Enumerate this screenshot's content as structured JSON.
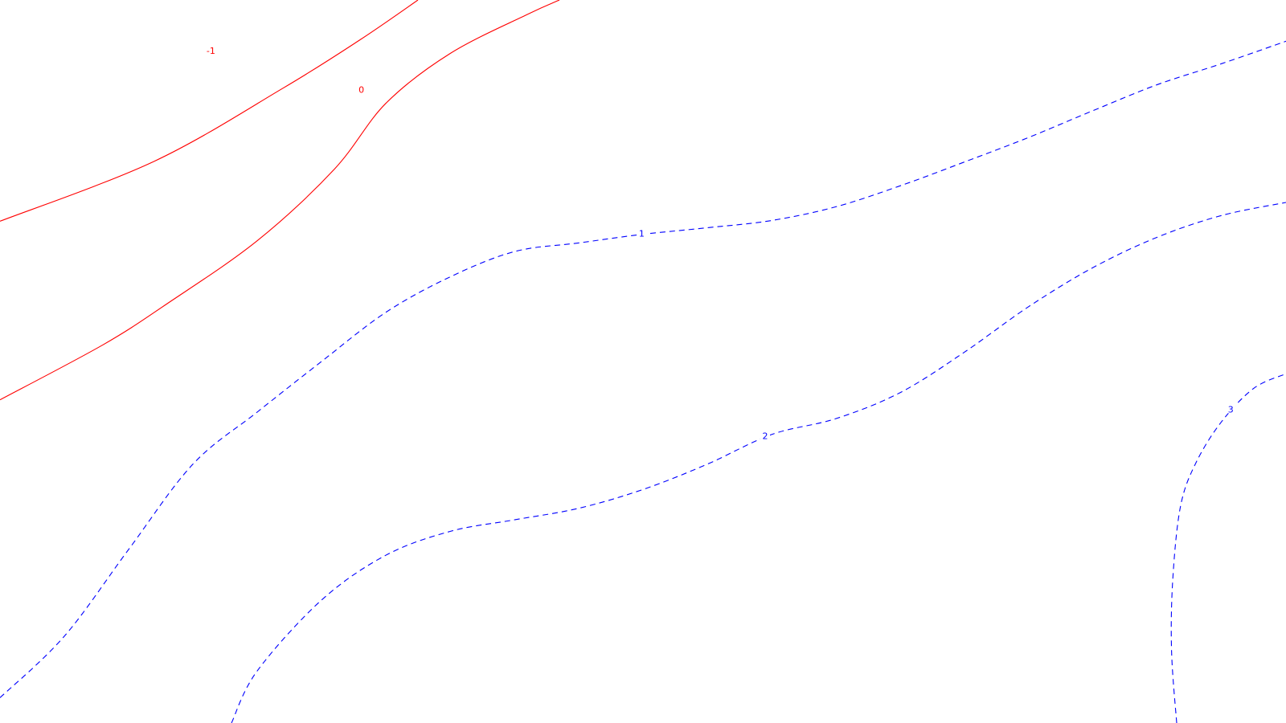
{
  "chart_data": {
    "type": "contour",
    "title": "",
    "xlabel": "",
    "ylabel": "",
    "grid": false,
    "legend": "none",
    "negative_style": "solid",
    "positive_style": "dashed",
    "colors": {
      "negative": "#ff0000",
      "zero": "#ff0000",
      "positive": "#0000ff",
      "background": "#ffffff"
    },
    "levels": [
      {
        "value": -1,
        "label": "-1",
        "color": "#ff0000",
        "dashed": false,
        "points": [
          [
            0.0,
            0.306
          ],
          [
            0.12,
            0.223
          ],
          [
            0.22,
            0.122
          ],
          [
            0.28,
            0.055
          ],
          [
            0.325,
            0.0
          ]
        ],
        "label_at": [
          0.164,
          0.07
        ]
      },
      {
        "value": 0,
        "label": "0",
        "color": "#ff0000",
        "dashed": false,
        "points": [
          [
            0.0,
            0.553
          ],
          [
            0.08,
            0.477
          ],
          [
            0.13,
            0.42
          ],
          [
            0.2,
            0.333
          ],
          [
            0.26,
            0.234
          ],
          [
            0.3,
            0.143
          ],
          [
            0.35,
            0.074
          ],
          [
            0.41,
            0.02
          ],
          [
            0.435,
            0.0
          ]
        ],
        "label_at": [
          0.281,
          0.124
        ]
      },
      {
        "value": 1,
        "label": "1",
        "color": "#0000ff",
        "dashed": true,
        "points": [
          [
            0.0,
            0.965
          ],
          [
            0.05,
            0.88
          ],
          [
            0.1,
            0.76
          ],
          [
            0.15,
            0.642
          ],
          [
            0.2,
            0.57
          ],
          [
            0.25,
            0.5
          ],
          [
            0.3,
            0.432
          ],
          [
            0.35,
            0.383
          ],
          [
            0.4,
            0.348
          ],
          [
            0.45,
            0.336
          ],
          [
            0.5,
            0.324
          ],
          [
            0.55,
            0.315
          ],
          [
            0.6,
            0.305
          ],
          [
            0.65,
            0.286
          ],
          [
            0.7,
            0.257
          ],
          [
            0.75,
            0.224
          ],
          [
            0.8,
            0.19
          ],
          [
            0.85,
            0.153
          ],
          [
            0.9,
            0.117
          ],
          [
            0.95,
            0.088
          ],
          [
            1.0,
            0.057
          ]
        ],
        "label_at": [
          0.499,
          0.323
        ]
      },
      {
        "value": 2,
        "label": "2",
        "color": "#0000ff",
        "dashed": true,
        "points": [
          [
            0.18,
            1.0
          ],
          [
            0.2,
            0.928
          ],
          [
            0.25,
            0.83
          ],
          [
            0.3,
            0.768
          ],
          [
            0.35,
            0.735
          ],
          [
            0.4,
            0.719
          ],
          [
            0.45,
            0.703
          ],
          [
            0.5,
            0.677
          ],
          [
            0.55,
            0.642
          ],
          [
            0.6,
            0.601
          ],
          [
            0.65,
            0.579
          ],
          [
            0.7,
            0.543
          ],
          [
            0.75,
            0.487
          ],
          [
            0.8,
            0.424
          ],
          [
            0.85,
            0.37
          ],
          [
            0.9,
            0.328
          ],
          [
            0.95,
            0.298
          ],
          [
            1.0,
            0.28
          ]
        ],
        "label_at": [
          0.595,
          0.603
        ]
      },
      {
        "value": 3,
        "label": "3",
        "color": "#0000ff",
        "dashed": true,
        "points": [
          [
            0.915,
            1.0
          ],
          [
            0.911,
            0.9
          ],
          [
            0.912,
            0.8
          ],
          [
            0.918,
            0.7
          ],
          [
            0.93,
            0.64
          ],
          [
            0.95,
            0.583
          ],
          [
            0.975,
            0.537
          ],
          [
            1.0,
            0.517
          ]
        ],
        "label_at": [
          0.957,
          0.566
        ]
      }
    ]
  }
}
